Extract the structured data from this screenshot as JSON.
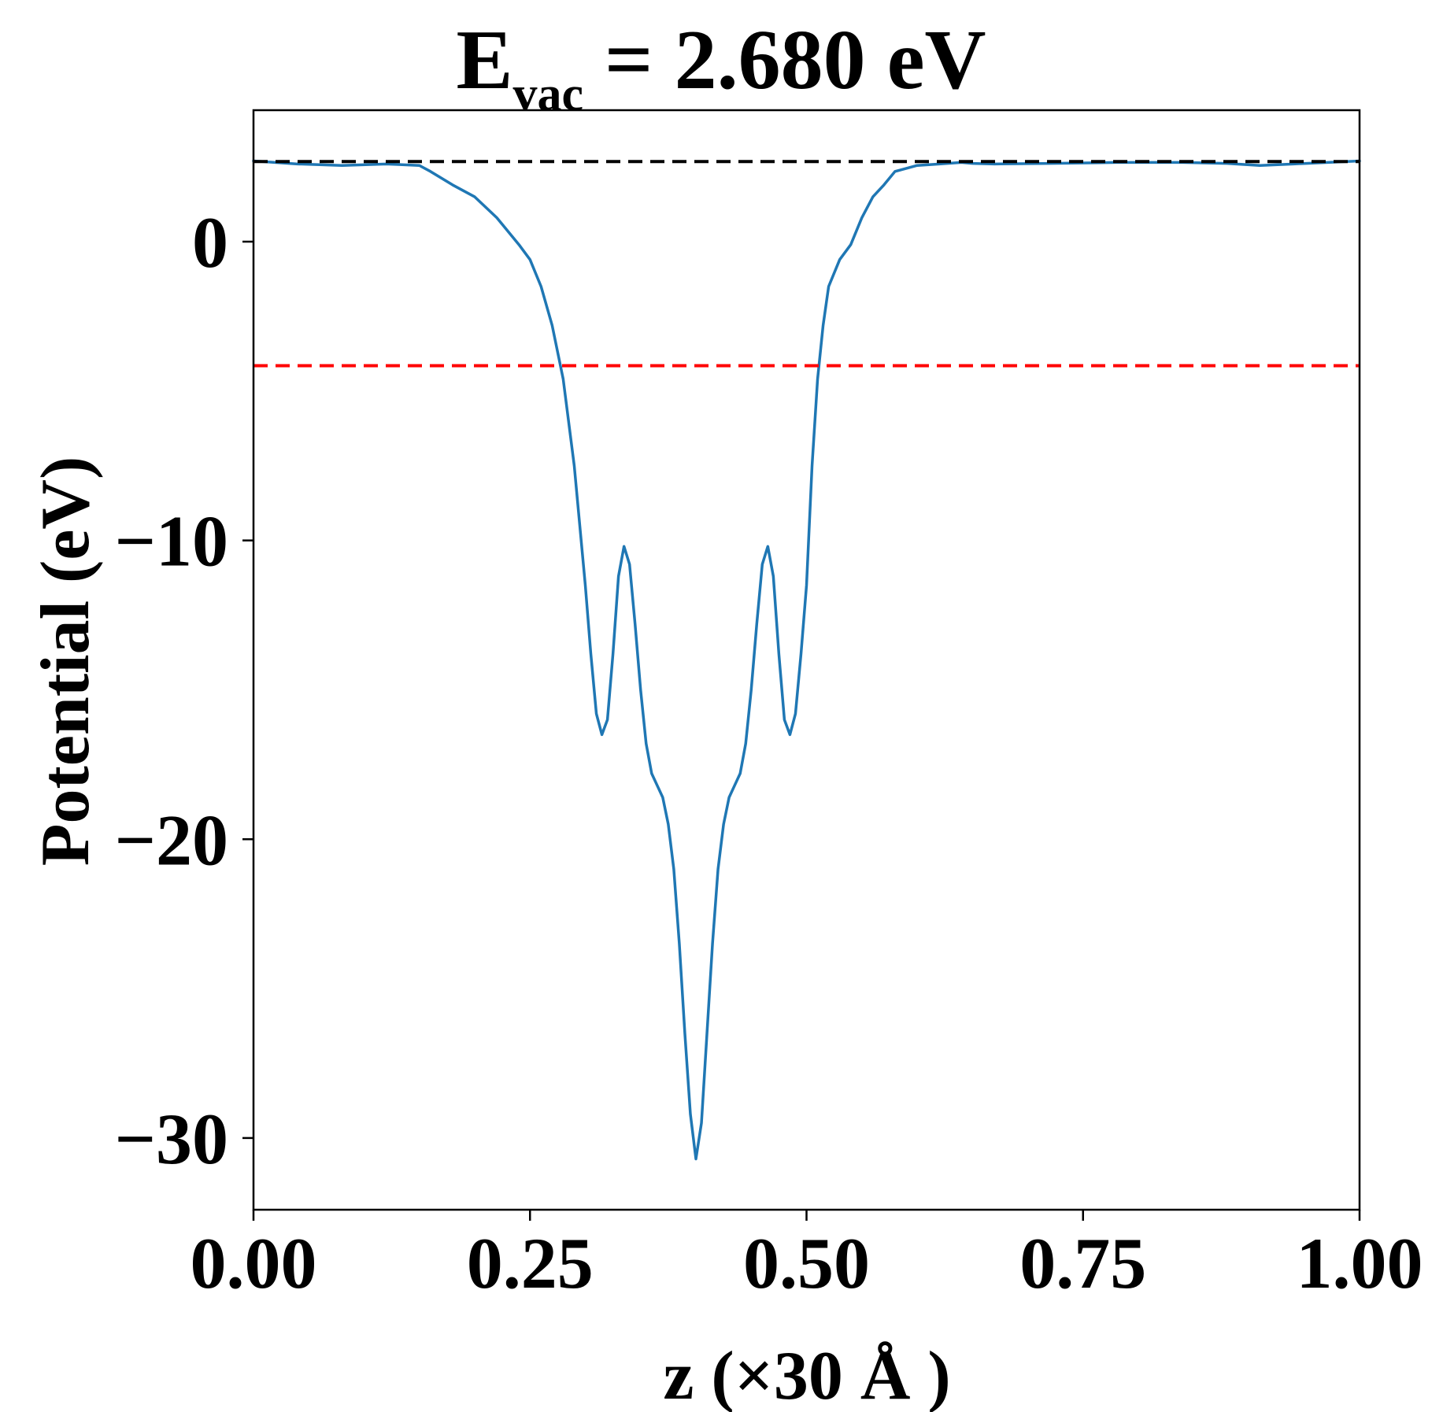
{
  "chart_data": {
    "type": "line",
    "title": {
      "prefix": "E",
      "subscript": "vac",
      "suffix": " = 2.680 eV"
    },
    "xlabel": "z (×30 Å )",
    "ylabel": "Potential (eV)",
    "xlim": [
      0.0,
      1.0
    ],
    "ylim": [
      -32.4,
      4.4
    ],
    "xticks": [
      0.0,
      0.25,
      0.5,
      0.75,
      1.0
    ],
    "xtick_labels": [
      "0.00",
      "0.25",
      "0.50",
      "0.75",
      "1.00"
    ],
    "yticks": [
      0,
      -10,
      -20,
      -30
    ],
    "ytick_labels": [
      "0",
      "−10",
      "−20",
      "−30"
    ],
    "grid": false,
    "legend": null,
    "series": [
      {
        "style": "solid",
        "color": "#1f77b4",
        "x": [
          0.0,
          0.04,
          0.08,
          0.12,
          0.15,
          0.16,
          0.18,
          0.2,
          0.22,
          0.24,
          0.25,
          0.26,
          0.27,
          0.28,
          0.29,
          0.3,
          0.305,
          0.31,
          0.315,
          0.32,
          0.325,
          0.33,
          0.335,
          0.34,
          0.345,
          0.35,
          0.355,
          0.36,
          0.365,
          0.37,
          0.375,
          0.38,
          0.385,
          0.39,
          0.395,
          0.4,
          0.405,
          0.41,
          0.415,
          0.42,
          0.425,
          0.43,
          0.435,
          0.44,
          0.445,
          0.45,
          0.455,
          0.46,
          0.465,
          0.47,
          0.475,
          0.48,
          0.485,
          0.49,
          0.495,
          0.5,
          0.505,
          0.51,
          0.515,
          0.52,
          0.53,
          0.54,
          0.55,
          0.56,
          0.57,
          0.58,
          0.6,
          0.62,
          0.64,
          0.65,
          0.67,
          0.72,
          0.78,
          0.84,
          0.88,
          0.91,
          0.94,
          1.0
        ],
        "y": [
          2.7,
          2.6,
          2.55,
          2.6,
          2.55,
          2.35,
          1.9,
          1.5,
          0.8,
          -0.1,
          -0.6,
          -1.5,
          -2.8,
          -4.6,
          -7.5,
          -11.5,
          -13.8,
          -15.8,
          -16.5,
          -16.0,
          -13.8,
          -11.2,
          -10.2,
          -10.8,
          -12.8,
          -15.0,
          -16.8,
          -17.8,
          -18.2,
          -18.6,
          -19.5,
          -21.0,
          -23.5,
          -26.5,
          -29.2,
          -30.7,
          -29.5,
          -26.5,
          -23.5,
          -21.0,
          -19.5,
          -18.6,
          -18.2,
          -17.8,
          -16.8,
          -15.0,
          -12.8,
          -10.8,
          -10.2,
          -11.2,
          -13.8,
          -16.0,
          -16.5,
          -15.8,
          -13.8,
          -11.5,
          -7.5,
          -4.6,
          -2.8,
          -1.5,
          -0.6,
          -0.1,
          0.8,
          1.5,
          1.9,
          2.35,
          2.55,
          2.6,
          2.65,
          2.62,
          2.6,
          2.62,
          2.65,
          2.65,
          2.62,
          2.55,
          2.6,
          2.7
        ]
      },
      {
        "style": "dashed",
        "color": "#000000",
        "x": [
          0.0,
          1.0
        ],
        "y": [
          2.68,
          2.68
        ]
      },
      {
        "style": "dashed",
        "color": "#ff0000",
        "x": [
          0.0,
          1.0
        ],
        "y": [
          -4.15,
          -4.15
        ]
      }
    ]
  }
}
